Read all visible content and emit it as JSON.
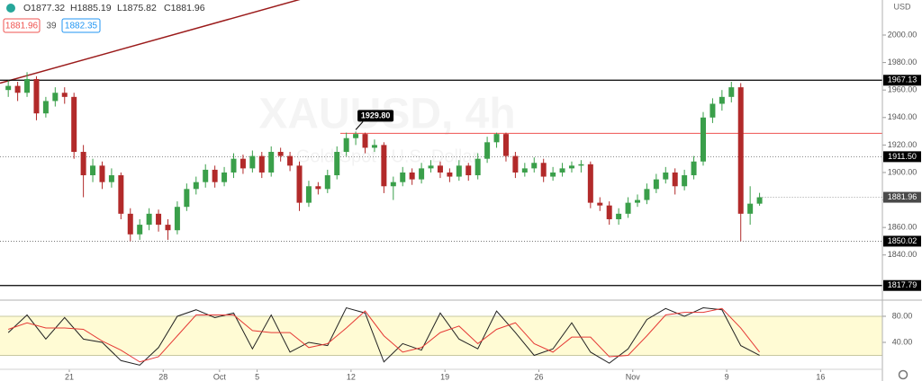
{
  "chart_data": [
    {
      "type": "candlestick",
      "header": [
        "O1877.32",
        "H1885.19",
        "L1875.82",
        "C1881.96"
      ],
      "bid": 1881.96,
      "spread": 39,
      "ask": 1882.35,
      "watermark": "XAUUSD, 4h",
      "watermark_subtitle": "Gold Spot / U.S. Dollar",
      "currency": "USD",
      "up_color": "#3a9f4a",
      "down_color": "#b22a2a",
      "ylim": [
        1807.8,
        2025.5
      ],
      "yticks": [
        {
          "value": 1840,
          "label": "1840.00"
        },
        {
          "value": 1860,
          "label": "1860.00"
        },
        {
          "value": 1880,
          "label": "1880.00"
        },
        {
          "value": 1900,
          "label": "1900.00"
        },
        {
          "value": 1920,
          "label": "1920.00"
        },
        {
          "value": 1940,
          "label": "1940.00"
        },
        {
          "value": 1960,
          "label": "1960.00"
        },
        {
          "value": 1980,
          "label": "1980.00"
        },
        {
          "value": 2000,
          "label": "2000.00"
        }
      ],
      "x": [
        -3.25,
        -2.75,
        -2.25,
        -1.75,
        -1.25,
        -0.75,
        -0.25,
        0.25,
        0.75,
        1.25,
        1.75,
        2.25,
        2.75,
        3.25,
        3.75,
        4.25,
        4.75,
        5.25,
        5.75,
        6.25,
        6.75,
        7.25,
        7.75,
        8.25,
        8.75,
        9.25,
        9.75,
        10.25,
        10.75,
        11.25,
        11.75,
        12.25,
        12.75,
        13.25,
        13.75,
        14.25,
        14.75,
        15.25,
        15.75,
        16.25,
        16.75,
        17.25,
        17.75,
        18.25,
        18.75,
        19.25,
        19.75,
        20.25,
        20.75,
        21.25,
        21.75,
        22.25,
        22.75,
        23.25,
        23.75,
        24.25,
        24.75,
        25.25,
        25.75,
        26.25,
        26.75,
        27.25,
        27.75,
        28.25,
        28.75,
        29.25,
        29.75,
        30.25,
        30.75,
        31.25,
        31.75,
        32.25,
        32.75,
        33.25,
        33.75,
        34.25,
        34.75,
        35.25,
        35.75,
        36.25,
        36.75
      ],
      "candles": [
        [
          1960,
          1967,
          1955,
          1963
        ],
        [
          1963,
          1966,
          1952,
          1958
        ],
        [
          1958,
          1973,
          1955,
          1968
        ],
        [
          1968,
          1970,
          1938,
          1943
        ],
        [
          1943,
          1955,
          1940,
          1952
        ],
        [
          1952,
          1962,
          1948,
          1958
        ],
        [
          1958,
          1962,
          1950,
          1955
        ],
        [
          1955,
          1958,
          1910,
          1915
        ],
        [
          1915,
          1920,
          1882,
          1898
        ],
        [
          1898,
          1910,
          1893,
          1905
        ],
        [
          1905,
          1908,
          1888,
          1893
        ],
        [
          1893,
          1903,
          1889,
          1898
        ],
        [
          1898,
          1900,
          1866,
          1870
        ],
        [
          1870,
          1874,
          1850,
          1855
        ],
        [
          1855,
          1866,
          1851,
          1862
        ],
        [
          1862,
          1874,
          1858,
          1870
        ],
        [
          1870,
          1873,
          1857,
          1862
        ],
        [
          1862,
          1866,
          1851,
          1858
        ],
        [
          1858,
          1879,
          1855,
          1875
        ],
        [
          1875,
          1892,
          1872,
          1888
        ],
        [
          1888,
          1897,
          1884,
          1893
        ],
        [
          1893,
          1906,
          1889,
          1902
        ],
        [
          1902,
          1905,
          1889,
          1893
        ],
        [
          1893,
          1904,
          1890,
          1900
        ],
        [
          1900,
          1914,
          1896,
          1910
        ],
        [
          1910,
          1913,
          1899,
          1903
        ],
        [
          1903,
          1916,
          1900,
          1912
        ],
        [
          1912,
          1915,
          1896,
          1900
        ],
        [
          1900,
          1919,
          1897,
          1915
        ],
        [
          1915,
          1918,
          1908,
          1912
        ],
        [
          1912,
          1915,
          1901,
          1905
        ],
        [
          1905,
          1908,
          1872,
          1878
        ],
        [
          1878,
          1894,
          1875,
          1890
        ],
        [
          1890,
          1893,
          1884,
          1888
        ],
        [
          1888,
          1902,
          1885,
          1898
        ],
        [
          1898,
          1919,
          1895,
          1915
        ],
        [
          1915,
          1929,
          1912,
          1925
        ],
        [
          1925,
          1929.8,
          1920,
          1928
        ],
        [
          1928,
          1929,
          1914,
          1918
        ],
        [
          1918,
          1924,
          1915,
          1920
        ],
        [
          1920,
          1922,
          1885,
          1890
        ],
        [
          1890,
          1897,
          1880,
          1893
        ],
        [
          1893,
          1904,
          1890,
          1900
        ],
        [
          1900,
          1903,
          1891,
          1895
        ],
        [
          1895,
          1907,
          1892,
          1903
        ],
        [
          1903,
          1909,
          1900,
          1905
        ],
        [
          1905,
          1908,
          1896,
          1900
        ],
        [
          1900,
          1903,
          1893,
          1897
        ],
        [
          1897,
          1909,
          1894,
          1905
        ],
        [
          1905,
          1907,
          1894,
          1898
        ],
        [
          1898,
          1914,
          1895,
          1910
        ],
        [
          1910,
          1926,
          1907,
          1922
        ],
        [
          1922,
          1929,
          1918,
          1928
        ],
        [
          1928,
          1929,
          1908,
          1912
        ],
        [
          1912,
          1915,
          1896,
          1900
        ],
        [
          1900,
          1907,
          1897,
          1903
        ],
        [
          1903,
          1911,
          1900,
          1907
        ],
        [
          1907,
          1910,
          1893,
          1897
        ],
        [
          1897,
          1904,
          1894,
          1900
        ],
        [
          1900,
          1907,
          1897,
          1903
        ],
        [
          1903,
          1908,
          1900,
          1905
        ],
        [
          1905,
          1909,
          1900,
          1906
        ],
        [
          1906,
          1908,
          1874,
          1878
        ],
        [
          1878,
          1882,
          1872,
          1876
        ],
        [
          1876,
          1879,
          1862,
          1866
        ],
        [
          1866,
          1874,
          1862,
          1870
        ],
        [
          1870,
          1882,
          1867,
          1878
        ],
        [
          1878,
          1884,
          1875,
          1880
        ],
        [
          1880,
          1892,
          1877,
          1888
        ],
        [
          1888,
          1899,
          1885,
          1895
        ],
        [
          1895,
          1904,
          1892,
          1900
        ],
        [
          1900,
          1903,
          1884,
          1890
        ],
        [
          1890,
          1902,
          1887,
          1898
        ],
        [
          1898,
          1912,
          1895,
          1908
        ],
        [
          1908,
          1944,
          1905,
          1940
        ],
        [
          1940,
          1954,
          1936,
          1950
        ],
        [
          1950,
          1960,
          1945,
          1955
        ],
        [
          1955,
          1966,
          1951,
          1962
        ],
        [
          1962,
          1965,
          1850.02,
          1870
        ],
        [
          1870,
          1890,
          1862,
          1877.32
        ],
        [
          1877.32,
          1885.19,
          1875.82,
          1881.96
        ]
      ],
      "levels": [
        {
          "value": 1967.13,
          "label": "1967.13",
          "style": "solid"
        },
        {
          "value": 1911.5,
          "label": "1911.50",
          "style": "dotted"
        },
        {
          "value": 1850.02,
          "label": "1850.02",
          "style": "dotted"
        },
        {
          "value": 1817.79,
          "label": "1817.79",
          "style": "solid"
        }
      ],
      "ray": {
        "x": 14.43,
        "y": 1928.5,
        "color": "#ef5350"
      },
      "callout": {
        "x": 15.25,
        "value": 1929.8,
        "label": "1929.80"
      },
      "trendline": {
        "x": [
          -3.69,
          14
        ],
        "y": [
          1965,
          2032.5
        ],
        "color": "#9b1b1b"
      }
    },
    {
      "type": "line",
      "xlim": [
        -3.69,
        43.29
      ],
      "xticks": [
        {
          "value": 0,
          "label": "21"
        },
        {
          "value": 5,
          "label": "28"
        },
        {
          "value": 8,
          "label": "Oct"
        },
        {
          "value": 10,
          "label": "5"
        },
        {
          "value": 15,
          "label": "12"
        },
        {
          "value": 20,
          "label": "19"
        },
        {
          "value": 25,
          "label": "26"
        },
        {
          "value": 30,
          "label": "Nov"
        },
        {
          "value": 35,
          "label": "9"
        },
        {
          "value": 40,
          "label": "16"
        }
      ],
      "ylim": [
        0,
        103.4
      ],
      "yticks": [
        {
          "value": 40,
          "label": "40.00"
        },
        {
          "value": 80,
          "label": "80.00"
        }
      ],
      "band": [
        20,
        80
      ],
      "x": [
        -3.25,
        -2.25,
        -1.25,
        -0.25,
        0.75,
        1.75,
        2.75,
        3.75,
        4.75,
        5.75,
        6.75,
        7.75,
        8.75,
        9.75,
        10.75,
        11.75,
        12.75,
        13.75,
        14.75,
        15.75,
        16.75,
        17.75,
        18.75,
        19.75,
        20.75,
        21.75,
        22.75,
        23.75,
        24.75,
        25.75,
        26.75,
        27.75,
        28.75,
        29.75,
        30.75,
        31.75,
        32.75,
        33.75,
        34.75,
        35.75,
        36.75
      ],
      "series": [
        {
          "color": "#222222",
          "values": [
            55,
            82,
            45,
            78,
            45,
            40,
            12,
            5,
            32,
            80,
            90,
            78,
            85,
            30,
            82,
            25,
            40,
            35,
            93,
            85,
            10,
            38,
            28,
            85,
            45,
            30,
            88,
            55,
            20,
            30,
            70,
            25,
            8,
            30,
            75,
            92,
            80,
            93,
            90,
            35,
            20
          ]
        },
        {
          "color": "#e53935",
          "values": [
            60,
            70,
            62,
            62,
            60,
            42,
            28,
            10,
            18,
            50,
            82,
            82,
            82,
            58,
            55,
            55,
            32,
            38,
            62,
            88,
            50,
            25,
            32,
            55,
            65,
            38,
            60,
            70,
            38,
            25,
            48,
            48,
            18,
            20,
            50,
            82,
            86,
            86,
            92,
            62,
            25
          ]
        }
      ]
    }
  ]
}
